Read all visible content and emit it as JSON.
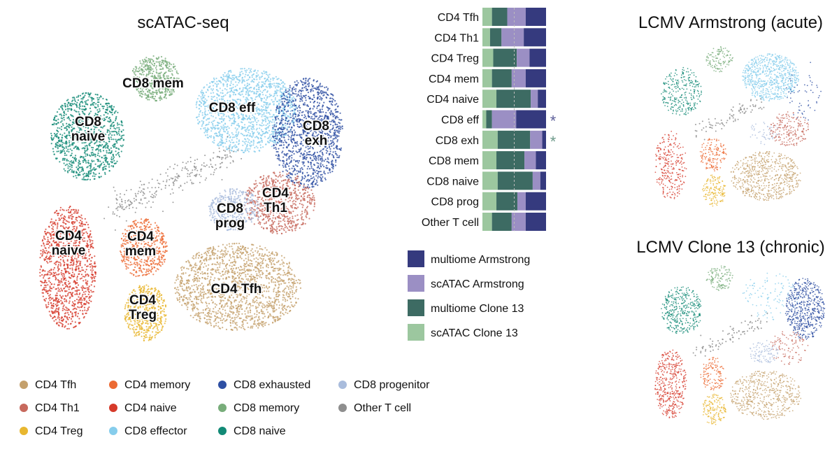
{
  "chart_data": [
    {
      "type": "scatter",
      "title": "scATAC-seq",
      "cluster_labels": [
        {
          "text": "CD8 mem",
          "lines": [
            "CD8 mem"
          ]
        },
        {
          "text": "CD8 eff",
          "lines": [
            "CD8 eff"
          ]
        },
        {
          "text": "CD8 naive",
          "lines": [
            "CD8",
            "naive"
          ]
        },
        {
          "text": "CD8 exh",
          "lines": [
            "CD8",
            "exh"
          ]
        },
        {
          "text": "CD4 Th1",
          "lines": [
            "CD4",
            "Th1"
          ]
        },
        {
          "text": "CD8 prog",
          "lines": [
            "CD8",
            "prog"
          ]
        },
        {
          "text": "CD4 naive",
          "lines": [
            "CD4",
            "naive"
          ]
        },
        {
          "text": "CD4 mem",
          "lines": [
            "CD4",
            "mem"
          ]
        },
        {
          "text": "CD4 Tfh",
          "lines": [
            "CD4 Tfh"
          ]
        },
        {
          "text": "CD4 Treg",
          "lines": [
            "CD4",
            "Treg"
          ]
        }
      ],
      "legend": [
        {
          "label": "CD4 Tfh",
          "color": "#c4a06c"
        },
        {
          "label": "CD4 memory",
          "color": "#ec6a33"
        },
        {
          "label": "CD8 exhausted",
          "color": "#2e4fa3"
        },
        {
          "label": "CD8 progenitor",
          "color": "#a9bcdc"
        },
        {
          "label": "CD4 Th1",
          "color": "#c7695d"
        },
        {
          "label": "CD4 naive",
          "color": "#d63a2a"
        },
        {
          "label": "CD8 memory",
          "color": "#78ad7a"
        },
        {
          "label": "Other T cell",
          "color": "#8e8e8e"
        },
        {
          "label": "CD4 Treg",
          "color": "#e8b730"
        },
        {
          "label": "CD8 effector",
          "color": "#86cdec"
        },
        {
          "label": "CD8 naive",
          "color": "#128a76"
        }
      ]
    },
    {
      "type": "bar",
      "orientation": "horizontal",
      "stacked": true,
      "normalized": true,
      "categories": [
        "CD4 Tfh",
        "CD4 Th1",
        "CD4 Treg",
        "CD4 mem",
        "CD4 naive",
        "CD8 eff",
        "CD8 exh",
        "CD8 mem",
        "CD8 naive",
        "CD8 prog",
        "Other T cell"
      ],
      "series": [
        {
          "name": "scATAC Clone 13",
          "color": "#9cc79f",
          "values": [
            0.15,
            0.12,
            0.17,
            0.15,
            0.22,
            0.06,
            0.24,
            0.22,
            0.24,
            0.22,
            0.15
          ]
        },
        {
          "name": "multiome Clone 13",
          "color": "#3d6b63",
          "values": [
            0.24,
            0.18,
            0.37,
            0.31,
            0.54,
            0.09,
            0.51,
            0.44,
            0.55,
            0.33,
            0.31
          ]
        },
        {
          "name": "scATAC Armstrong",
          "color": "#9b8fc4",
          "values": [
            0.29,
            0.35,
            0.2,
            0.22,
            0.11,
            0.38,
            0.19,
            0.18,
            0.12,
            0.13,
            0.22
          ]
        },
        {
          "name": "multiome Armstrong",
          "color": "#353a7e",
          "values": [
            0.32,
            0.35,
            0.26,
            0.32,
            0.13,
            0.47,
            0.06,
            0.16,
            0.09,
            0.32,
            0.32
          ]
        }
      ],
      "significance": [
        {
          "category": "CD8 eff",
          "symbol": "*",
          "color": "#5d5f9a"
        },
        {
          "category": "CD8 exh",
          "symbol": "*",
          "color": "#6d9a8a"
        }
      ],
      "legend": [
        {
          "label": "multiome Armstrong",
          "color": "#353a7e"
        },
        {
          "label": "scATAC Armstrong",
          "color": "#9b8fc4"
        },
        {
          "label": "multiome Clone 13",
          "color": "#3d6b63"
        },
        {
          "label": "scATAC Clone 13",
          "color": "#9cc79f"
        }
      ],
      "reference_line": 0.5,
      "xlim": [
        0,
        1
      ]
    },
    {
      "type": "scatter",
      "title": "LCMV Armstrong (acute)"
    },
    {
      "type": "scatter",
      "title": "LCMV Clone 13 (chronic)"
    }
  ]
}
